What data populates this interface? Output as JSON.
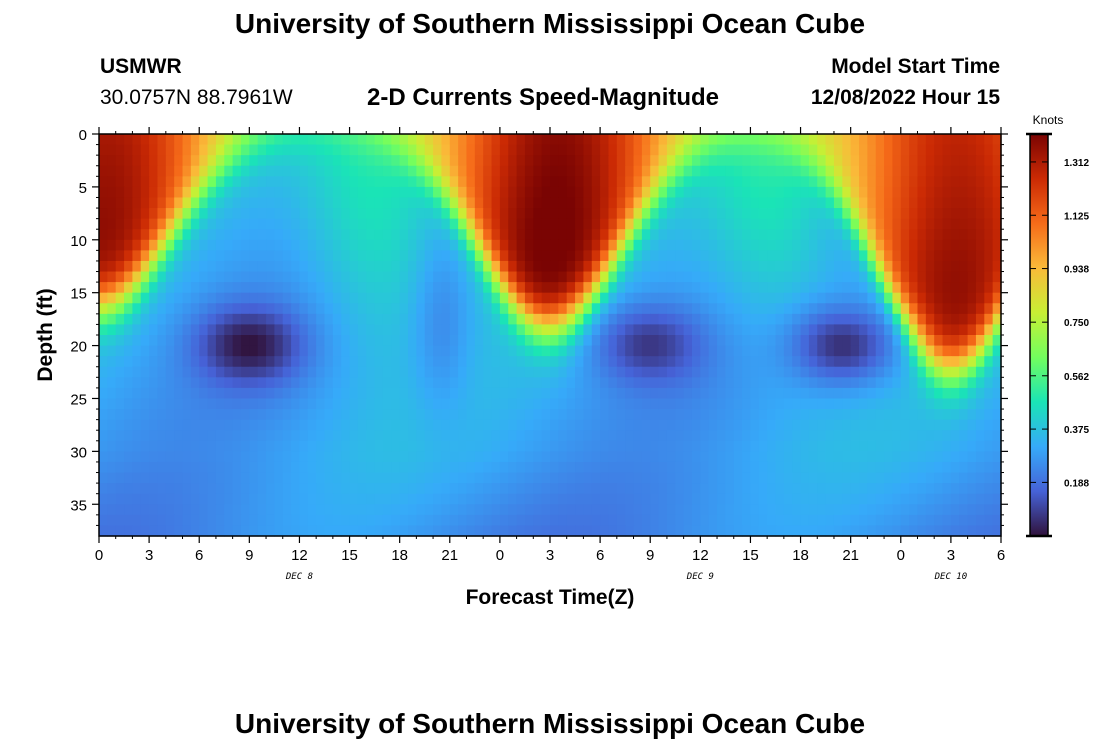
{
  "header": {
    "title": "University of Southern Mississippi Ocean Cube",
    "station": "USMWR",
    "coordinates": "30.0757N  88.7961W",
    "subtitle": "2-D Currents Speed-Magnitude",
    "model_start_label": "Model Start Time",
    "model_start_value": "12/08/2022 Hour 15"
  },
  "footer": {
    "title": "University of Southern Mississippi Ocean Cube"
  },
  "chart_data": {
    "type": "heatmap",
    "title": "2-D Currents Speed-Magnitude",
    "xlabel": "Forecast Time(Z)",
    "ylabel": "Depth (ft)",
    "x_ticks": [
      "0",
      "3",
      "6",
      "9",
      "12",
      "15",
      "18",
      "21",
      "0",
      "3",
      "6",
      "9",
      "12",
      "15",
      "18",
      "21",
      "0",
      "3",
      "6"
    ],
    "x_range_hours": [
      0,
      54
    ],
    "day_labels": [
      {
        "label": "DEC 8",
        "hour": 12
      },
      {
        "label": "DEC 9",
        "hour": 36
      },
      {
        "label": "DEC 10",
        "hour": 51
      }
    ],
    "y_ticks": [
      "0",
      "5",
      "10",
      "15",
      "20",
      "25",
      "30",
      "35"
    ],
    "y_range": [
      0,
      38
    ],
    "colorbar": {
      "unit_label": "Knots",
      "ticks": [
        "1.312",
        "1.125",
        "0.938",
        "0.750",
        "0.562",
        "0.375",
        "0.188"
      ],
      "range": [
        0,
        1.41
      ]
    },
    "colormap": [
      "#30123b",
      "#4662d7",
      "#36aaf9",
      "#1ae4b6",
      "#72fe5e",
      "#c8ef34",
      "#faba39",
      "#f66b19",
      "#cb2a04",
      "#7a0403"
    ],
    "profile_peaks": [
      {
        "hour": 0,
        "surface": 1.32,
        "depth_ft": 16
      },
      {
        "hour": 27,
        "surface": 1.38,
        "depth_ft": 18
      },
      {
        "hour": 51,
        "surface": 1.32,
        "depth_ft": 22
      }
    ],
    "minima": [
      {
        "hour": 9,
        "depth_ft": 20,
        "value": 0.0
      },
      {
        "hour": 33,
        "depth_ft": 20,
        "value": 0.07
      },
      {
        "hour": 44.5,
        "depth_ft": 20,
        "value": 0.06
      }
    ]
  }
}
